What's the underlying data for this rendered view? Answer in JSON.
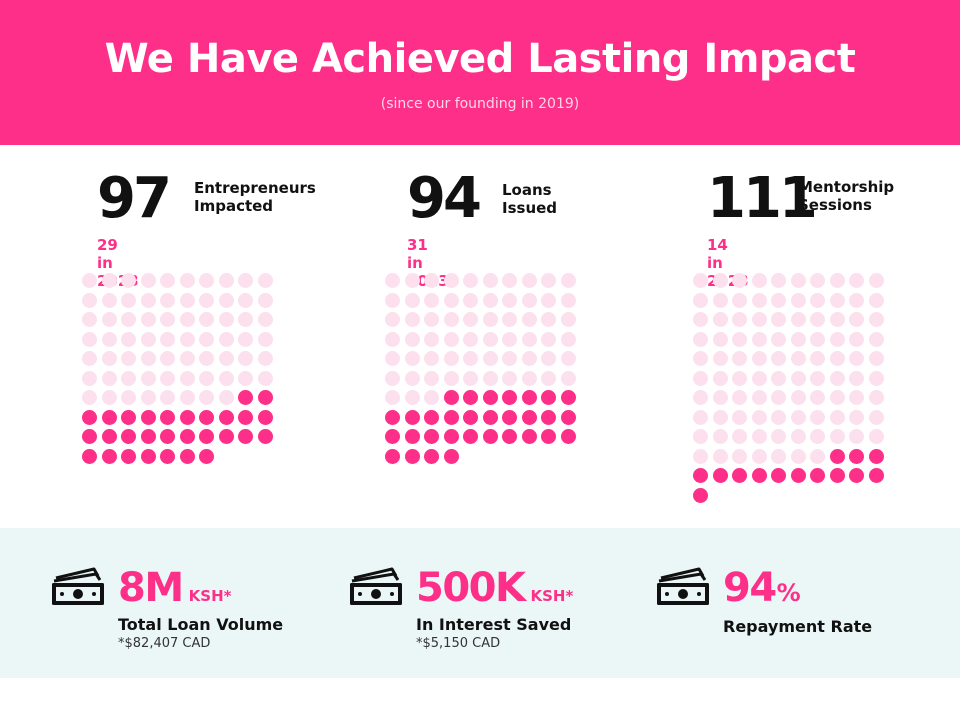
{
  "header": {
    "title": "We Have Achieved Lasting Impact",
    "subtitle": "(since our founding in 2019)"
  },
  "colors": {
    "brand_pink": "#fd2f88",
    "light_dot": "#fce0ee",
    "band_bg": "#ebf6f7"
  },
  "stats": [
    {
      "value": "97",
      "label": "Entrepreneurs\nImpacted",
      "year_note": "29 in 2023",
      "total": 97,
      "recent": 29
    },
    {
      "value": "94",
      "label": "Loans\nIssued",
      "year_note": "31 in 2023",
      "total": 94,
      "recent": 31
    },
    {
      "value": "111",
      "label": "Mentorship\nSessions",
      "year_note": "14 in 2023",
      "total": 111,
      "recent": 14
    }
  ],
  "money": [
    {
      "icon": "cash-icon",
      "value": "8M",
      "unit": "KSH*",
      "desc": "Total Loan Volume",
      "note": "*$82,407 CAD"
    },
    {
      "icon": "cash-icon",
      "value": "500K",
      "unit": "KSH*",
      "desc": "In Interest Saved",
      "note": "*$5,150 CAD"
    },
    {
      "icon": "cash-icon",
      "value": "94",
      "unit": "%",
      "desc": "Repayment Rate",
      "note": ""
    }
  ]
}
